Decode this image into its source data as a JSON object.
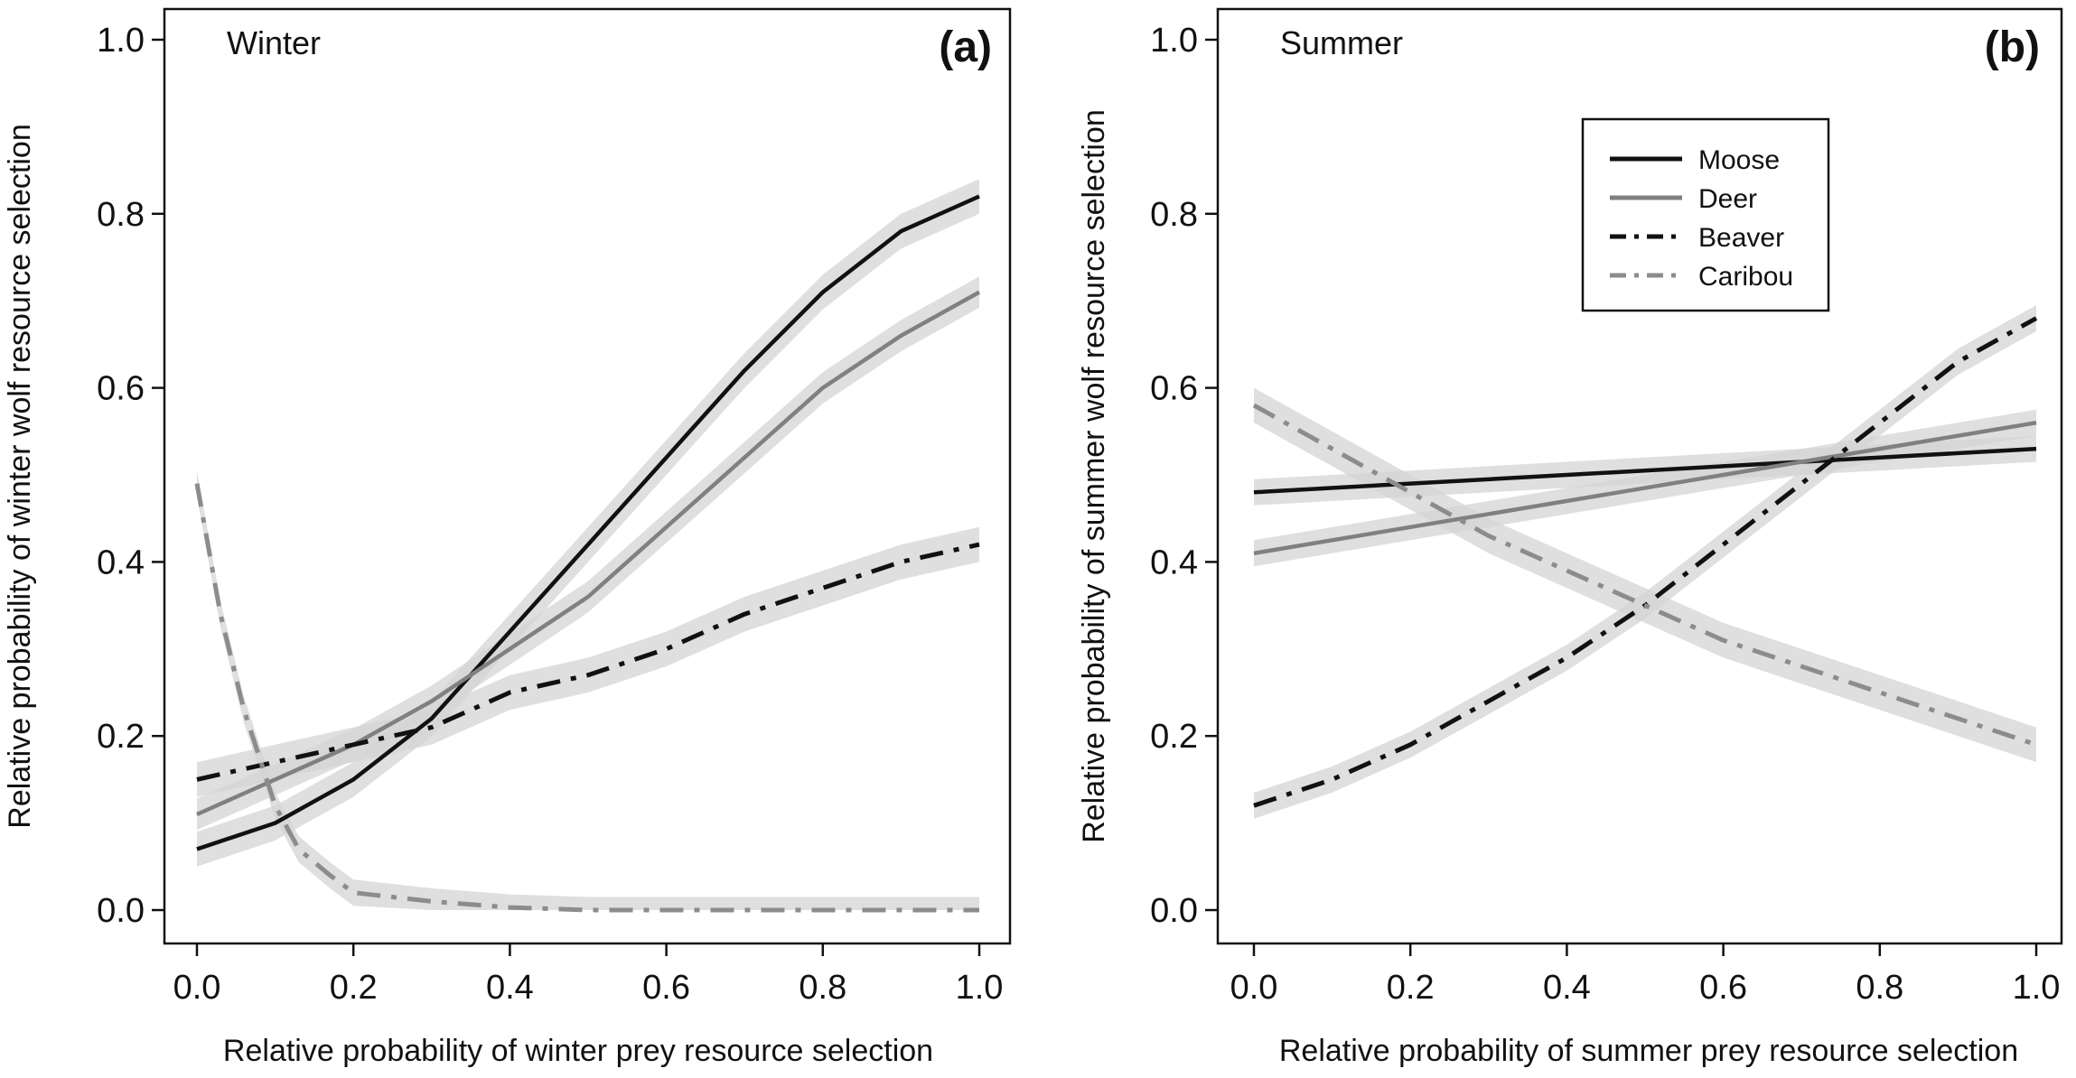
{
  "chart_data": [
    {
      "type": "line",
      "panel_label": "(a)",
      "season_label": "Winter",
      "xlabel": "Relative probability of winter prey resource selection",
      "ylabel": "Relative probability of winter wolf resource selection",
      "xlim": [
        0,
        1
      ],
      "ylim": [
        0,
        1
      ],
      "xticks": [
        "0.0",
        "0.2",
        "0.4",
        "0.6",
        "0.8",
        "1.0"
      ],
      "yticks": [
        "0.0",
        "0.2",
        "0.4",
        "0.6",
        "0.8",
        "1.0"
      ],
      "grid": false,
      "series": [
        {
          "name": "Moose",
          "x": [
            0,
            0.1,
            0.2,
            0.3,
            0.4,
            0.5,
            0.6,
            0.7,
            0.8,
            0.9,
            1.0
          ],
          "values": [
            0.07,
            0.1,
            0.15,
            0.22,
            0.32,
            0.42,
            0.52,
            0.62,
            0.71,
            0.78,
            0.82
          ],
          "ci_halfwidth": 0.02,
          "color": "#111111",
          "style": "solid"
        },
        {
          "name": "Deer",
          "x": [
            0,
            0.1,
            0.2,
            0.3,
            0.4,
            0.5,
            0.6,
            0.7,
            0.8,
            0.9,
            1.0
          ],
          "values": [
            0.11,
            0.15,
            0.19,
            0.24,
            0.3,
            0.36,
            0.44,
            0.52,
            0.6,
            0.66,
            0.71
          ],
          "ci_halfwidth": 0.018,
          "color": "#808080",
          "style": "solid"
        },
        {
          "name": "Beaver",
          "x": [
            0,
            0.1,
            0.2,
            0.3,
            0.4,
            0.5,
            0.6,
            0.7,
            0.8,
            0.9,
            1.0
          ],
          "values": [
            0.15,
            0.17,
            0.19,
            0.21,
            0.25,
            0.27,
            0.3,
            0.34,
            0.37,
            0.4,
            0.42
          ],
          "ci_halfwidth": 0.02,
          "color": "#111111",
          "style": "dashdot"
        },
        {
          "name": "Caribou",
          "x": [
            0,
            0.03,
            0.06,
            0.1,
            0.13,
            0.17,
            0.2,
            0.3,
            0.4,
            0.5,
            0.6,
            0.7,
            0.8,
            0.9,
            1.0
          ],
          "values": [
            0.49,
            0.34,
            0.23,
            0.12,
            0.07,
            0.04,
            0.02,
            0.01,
            0.003,
            0.0,
            0.0,
            0.0,
            0.0,
            0.0,
            0.0
          ],
          "ci_halfwidth": 0.015,
          "color": "#8c8c8c",
          "style": "dashdot"
        }
      ]
    },
    {
      "type": "line",
      "panel_label": "(b)",
      "season_label": "Summer",
      "xlabel": "Relative probability of summer prey resource selection",
      "ylabel": "Relative probability of summer wolf resource selection",
      "xlim": [
        0,
        1
      ],
      "ylim": [
        0,
        1
      ],
      "xticks": [
        "0.0",
        "0.2",
        "0.4",
        "0.6",
        "0.8",
        "1.0"
      ],
      "yticks": [
        "0.0",
        "0.2",
        "0.4",
        "0.6",
        "0.8",
        "1.0"
      ],
      "grid": false,
      "legend": {
        "placement": "top-right",
        "entries": [
          "Moose",
          "Deer",
          "Beaver",
          "Caribou"
        ]
      },
      "series": [
        {
          "name": "Moose",
          "x": [
            0,
            0.2,
            0.4,
            0.6,
            0.8,
            1.0
          ],
          "values": [
            0.48,
            0.49,
            0.5,
            0.51,
            0.52,
            0.53
          ],
          "ci_halfwidth": 0.015,
          "color": "#111111",
          "style": "solid"
        },
        {
          "name": "Deer",
          "x": [
            0,
            0.2,
            0.4,
            0.6,
            0.8,
            1.0
          ],
          "values": [
            0.41,
            0.44,
            0.47,
            0.5,
            0.53,
            0.56
          ],
          "ci_halfwidth": 0.015,
          "color": "#808080",
          "style": "solid"
        },
        {
          "name": "Beaver",
          "x": [
            0,
            0.1,
            0.2,
            0.3,
            0.4,
            0.5,
            0.6,
            0.7,
            0.8,
            0.9,
            1.0
          ],
          "values": [
            0.12,
            0.15,
            0.19,
            0.24,
            0.29,
            0.35,
            0.42,
            0.49,
            0.56,
            0.63,
            0.68
          ],
          "ci_halfwidth": 0.015,
          "color": "#111111",
          "style": "dashdot"
        },
        {
          "name": "Caribou",
          "x": [
            0,
            0.1,
            0.2,
            0.3,
            0.4,
            0.5,
            0.6,
            0.7,
            0.8,
            0.9,
            1.0
          ],
          "values": [
            0.58,
            0.53,
            0.48,
            0.43,
            0.39,
            0.35,
            0.31,
            0.28,
            0.25,
            0.22,
            0.19
          ],
          "ci_halfwidth": 0.02,
          "color": "#8c8c8c",
          "style": "dashdot"
        }
      ]
    }
  ]
}
